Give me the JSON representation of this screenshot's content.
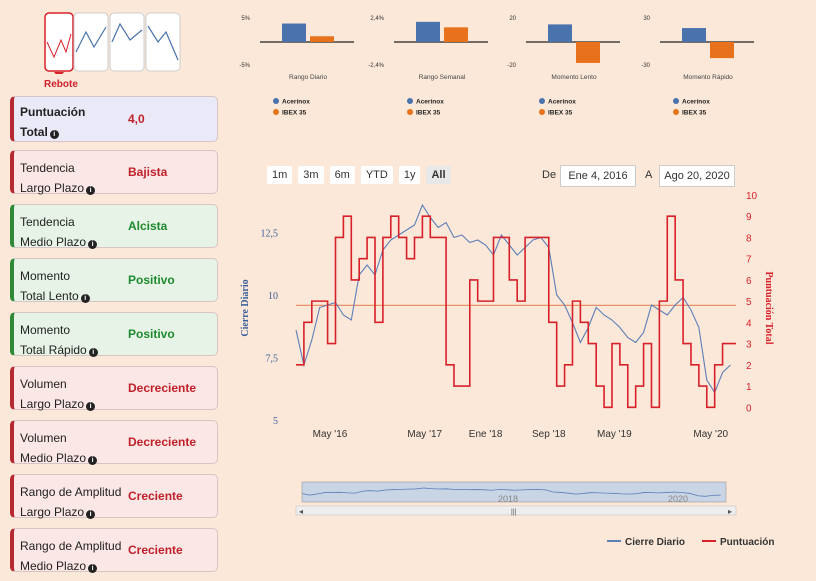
{
  "pattern": {
    "label": "Rebote"
  },
  "sidebar": {
    "cards": [
      {
        "label1": "Puntuación",
        "label2": "Total",
        "value": "4,0",
        "kind": "total"
      },
      {
        "label1": "Tendencia",
        "label2": "Largo Plazo",
        "value": "Bajista",
        "kind": "bad"
      },
      {
        "label1": "Tendencia",
        "label2": "Medio Plazo",
        "value": "Alcista",
        "kind": "good"
      },
      {
        "label1": "Momento",
        "label2": "Total Lento",
        "value": "Positivo",
        "kind": "good"
      },
      {
        "label1": "Momento",
        "label2": "Total Rápido",
        "value": "Positivo",
        "kind": "good"
      },
      {
        "label1": "Volumen",
        "label2": "Largo Plazo",
        "value": "Decreciente",
        "kind": "bad"
      },
      {
        "label1": "Volumen",
        "label2": "Medio Plazo",
        "value": "Decreciente",
        "kind": "bad"
      },
      {
        "label1": "Rango de Amplitud",
        "label2": "Largo Plazo",
        "value": "Creciente",
        "kind": "bad"
      },
      {
        "label1": "Rango de Amplitud",
        "label2": "Medio Plazo",
        "value": "Creciente",
        "kind": "bad"
      }
    ]
  },
  "range_buttons": [
    "1m",
    "3m",
    "6m",
    "YTD",
    "1y",
    "All"
  ],
  "active_range": "All",
  "date_from_label": "De",
  "date_from": "Ene 4, 2016",
  "date_to_label": "A",
  "date_to": "Ago 20, 2020",
  "colors": {
    "blue": "#4a72ad",
    "orange": "#e8711c",
    "red": "#d8202a",
    "line_blue": "#5c7fb8"
  },
  "chart_data": [
    {
      "type": "bar",
      "title": "Rango Diario",
      "ylim": [
        -5,
        5
      ],
      "tick_labels": [
        "5%",
        "-5%"
      ],
      "series": [
        {
          "name": "Acerinox",
          "value": 4.2
        },
        {
          "name": "IBEX 35",
          "value": 1.3
        }
      ]
    },
    {
      "type": "bar",
      "title": "Rango Semanal",
      "ylim": [
        -2.4,
        2.4
      ],
      "tick_labels": [
        "2,4%",
        "-2,4%"
      ],
      "series": [
        {
          "name": "Acerinox",
          "value": 2.2
        },
        {
          "name": "IBEX 35",
          "value": 1.6
        }
      ]
    },
    {
      "type": "bar",
      "title": "Momento Lento",
      "ylim": [
        -20,
        20
      ],
      "tick_labels": [
        "20",
        "-20"
      ],
      "series": [
        {
          "name": "Acerinox",
          "value": 16
        },
        {
          "name": "IBEX 35",
          "value": -19
        }
      ]
    },
    {
      "type": "bar",
      "title": "Momento Rápido",
      "ylim": [
        -30,
        30
      ],
      "tick_labels": [
        "30",
        "-30"
      ],
      "series": [
        {
          "name": "Acerinox",
          "value": 19
        },
        {
          "name": "IBEX 35",
          "value": -22
        }
      ]
    },
    {
      "type": "line",
      "title": "",
      "x_tick_labels": [
        "May '16",
        "May '17",
        "Ene '18",
        "Sep '18",
        "May '19",
        "May '20"
      ],
      "x_tick_positions": [
        4.3,
        16.3,
        24.0,
        32.0,
        40.3,
        52.5
      ],
      "x_range": [
        0,
        55.7
      ],
      "y_left": {
        "label": "Cierre Diario",
        "ticks": [
          5,
          7.5,
          10,
          12.5
        ],
        "ylim": [
          5,
          14
        ]
      },
      "y_right": {
        "label": "Puntuación Total",
        "ticks": [
          0,
          1,
          2,
          3,
          4,
          5,
          6,
          7,
          8,
          9,
          10
        ],
        "ylim": [
          -0.6,
          10
        ]
      },
      "reference_line": {
        "axis": "right",
        "value": 4.8
      },
      "series": [
        {
          "name": "Cierre Diario",
          "axis": "left",
          "x": [
            0,
            1,
            2,
            3,
            4,
            5,
            6,
            7,
            8,
            9,
            10,
            11,
            12,
            13,
            14,
            15,
            16,
            17,
            18,
            19,
            20,
            21,
            22,
            23,
            24,
            25,
            26,
            27,
            28,
            29,
            30,
            31,
            32,
            33,
            34,
            35,
            36,
            37,
            38,
            39,
            40,
            41,
            42,
            43,
            44,
            45,
            46,
            47,
            48,
            49,
            50,
            51,
            52,
            53,
            54,
            55
          ],
          "values": [
            8.6,
            7.2,
            8.2,
            9.5,
            9.6,
            9.7,
            9.2,
            9.0,
            10.8,
            11.2,
            10.8,
            11.8,
            12.2,
            12.4,
            12.6,
            12.8,
            13.6,
            13.1,
            12.7,
            12.9,
            12.3,
            12.4,
            12.1,
            12.2,
            12.0,
            11.6,
            12.4,
            12.0,
            11.6,
            11.9,
            12.2,
            12.3,
            11.9,
            10.0,
            9.6,
            8.9,
            8.1,
            8.7,
            9.5,
            9.2,
            9.0,
            8.7,
            8.3,
            8.1,
            8.5,
            9.6,
            9.4,
            9.2,
            9.6,
            9.9,
            9.4,
            8.7,
            6.6,
            6.1,
            6.9,
            7.2
          ]
        },
        {
          "name": "Puntuación",
          "axis": "right",
          "x": [
            0,
            1,
            2,
            3,
            4,
            5,
            6,
            7,
            8,
            9,
            10,
            11,
            12,
            13,
            14,
            15,
            16,
            17,
            18,
            19,
            20,
            21,
            22,
            23,
            24,
            25,
            26,
            27,
            28,
            29,
            30,
            31,
            32,
            33,
            34,
            35,
            36,
            37,
            38,
            39,
            40,
            41,
            42,
            43,
            44,
            45,
            46,
            47,
            48,
            49,
            50,
            51,
            52,
            53,
            54,
            55
          ],
          "values": [
            2,
            4,
            5,
            5,
            3,
            8,
            9,
            6,
            7,
            8,
            4,
            8,
            9,
            8,
            7,
            8,
            9,
            8,
            8,
            2,
            1,
            1,
            6,
            5,
            5,
            8,
            8,
            6,
            5,
            8,
            8,
            8,
            4,
            1,
            2,
            5,
            4,
            3,
            1,
            0,
            3,
            2,
            0,
            1,
            3,
            0,
            5,
            9,
            6,
            3,
            2,
            1,
            0,
            2,
            3,
            3
          ]
        }
      ]
    }
  ]
}
